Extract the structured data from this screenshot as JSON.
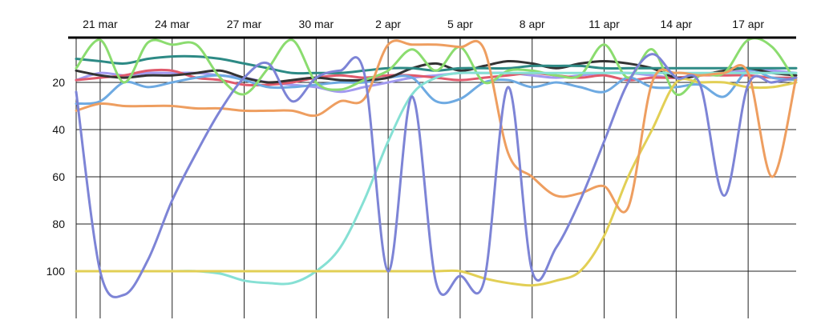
{
  "chart_data": {
    "type": "line",
    "title": "",
    "xlabel": "",
    "ylabel": "",
    "x_ticks": [
      "21 mar",
      "24 mar",
      "27 mar",
      "30 mar",
      "2 apr",
      "5 apr",
      "8 apr",
      "11 apr",
      "14 apr",
      "17 apr"
    ],
    "y_ticks": [
      "20",
      "40",
      "60",
      "80",
      "100"
    ],
    "y_reversed": true,
    "xlim": [
      "20 mar",
      "19 apr"
    ],
    "ylim": [
      1,
      120
    ],
    "x_axis_position": "top",
    "grid": true,
    "legend": "none",
    "x": [
      "20 mar",
      "21 mar",
      "22 mar",
      "23 mar",
      "24 mar",
      "25 mar",
      "26 mar",
      "27 mar",
      "28 mar",
      "29 mar",
      "30 mar",
      "31 mar",
      "1 apr",
      "2 apr",
      "3 apr",
      "4 apr",
      "5 apr",
      "6 apr",
      "7 apr",
      "8 apr",
      "9 apr",
      "10 apr",
      "11 apr",
      "12 apr",
      "13 apr",
      "14 apr",
      "15 apr",
      "16 apr",
      "17 apr",
      "18 apr",
      "19 apr"
    ],
    "series": [
      {
        "color": "#7d84d6",
        "values": [
          24,
          100,
          110,
          95,
          70,
          50,
          32,
          18,
          12,
          28,
          18,
          15,
          16,
          100,
          26,
          105,
          102,
          104,
          22,
          100,
          90,
          70,
          45,
          20,
          8,
          18,
          21,
          68,
          21,
          20,
          18
        ]
      },
      {
        "color": "#ee9e60",
        "values": [
          32,
          29,
          30,
          30,
          30,
          31,
          31,
          32,
          32,
          32,
          34,
          28,
          27,
          4,
          4,
          4,
          5,
          6,
          50,
          60,
          68,
          67,
          64,
          73,
          20,
          16,
          17,
          16,
          16,
          60,
          18
        ]
      },
      {
        "color": "#e2cf55",
        "values": [
          100,
          100,
          100,
          100,
          100,
          100,
          100,
          100,
          100,
          100,
          100,
          100,
          100,
          100,
          100,
          100,
          100,
          103,
          105,
          106,
          104,
          100,
          85,
          60,
          40,
          20,
          20,
          20,
          22,
          22,
          20
        ]
      },
      {
        "color": "#86e0d4",
        "values": [
          100,
          100,
          100,
          100,
          100,
          100,
          101,
          104,
          105,
          105,
          100,
          90,
          70,
          45,
          25,
          18,
          16,
          16,
          16,
          16,
          16,
          16,
          16,
          16,
          16,
          16,
          16,
          16,
          16,
          16,
          16
        ]
      },
      {
        "color": "#8bdc6f",
        "values": [
          14,
          2,
          20,
          3,
          4,
          4,
          18,
          25,
          14,
          2,
          20,
          23,
          19,
          15,
          6,
          15,
          5,
          20,
          15,
          15,
          17,
          17,
          4,
          18,
          6,
          25,
          17,
          16,
          2,
          5,
          20
        ]
      },
      {
        "color": "#2d8a85",
        "values": [
          10,
          11,
          12,
          10,
          9,
          9,
          10,
          12,
          14,
          16,
          16,
          16,
          15,
          14,
          14,
          15,
          14,
          14,
          14,
          13,
          13,
          13,
          14,
          14,
          14,
          14,
          14,
          14,
          14,
          14,
          14
        ]
      },
      {
        "color": "#333333",
        "values": [
          15,
          17,
          18,
          17,
          17,
          16,
          15,
          18,
          20,
          19,
          18,
          19,
          19,
          18,
          14,
          12,
          15,
          13,
          11,
          12,
          14,
          12,
          11,
          12,
          14,
          18,
          17,
          15,
          14,
          16,
          17
        ]
      },
      {
        "color": "#6eaae2",
        "values": [
          29,
          28,
          20,
          22,
          20,
          18,
          17,
          19,
          22,
          22,
          21,
          20,
          20,
          18,
          18,
          28,
          27,
          20,
          19,
          22,
          20,
          22,
          24,
          18,
          22,
          22,
          21,
          26,
          15,
          18,
          19
        ]
      },
      {
        "color": "#e05a6c",
        "values": [
          19,
          18,
          17,
          15,
          15,
          18,
          19,
          21,
          21,
          20,
          18,
          17,
          18,
          17,
          17,
          18,
          19,
          18,
          17,
          16,
          17,
          18,
          17,
          19,
          18,
          18,
          17,
          17,
          17,
          18,
          18
        ]
      },
      {
        "color": "#a29af0",
        "values": [
          19,
          16,
          17,
          16,
          16,
          16,
          17,
          18,
          20,
          21,
          22,
          24,
          22,
          20,
          18,
          17,
          16,
          16,
          16,
          17,
          18,
          17,
          16,
          16,
          17,
          18,
          17,
          16,
          15,
          15,
          16
        ]
      }
    ]
  }
}
